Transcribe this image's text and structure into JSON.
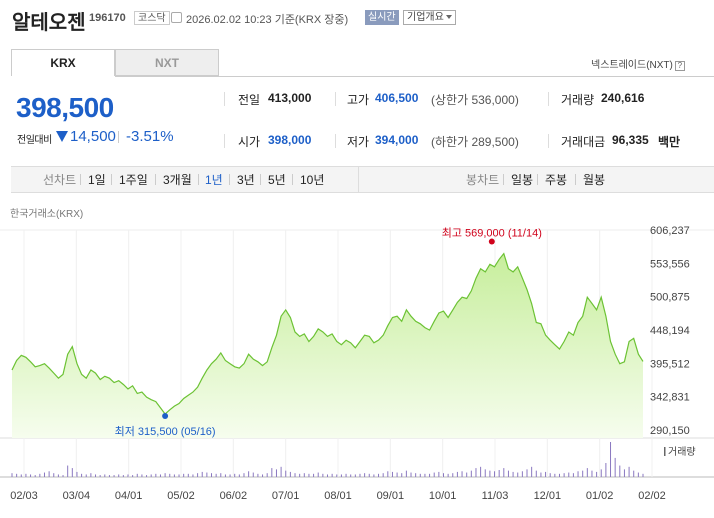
{
  "header": {
    "name": "알테오젠",
    "code": "196170",
    "market": "코스닥",
    "datetime": "2026.02.02 10:23 기준(KRX 장중)",
    "realtime": "실시간",
    "corp_button": "기업개요"
  },
  "tabs": {
    "krx": "KRX",
    "nxt": "NXT",
    "nxt_link": "넥스트레이드(NXT)",
    "help": "?"
  },
  "price": {
    "current": "398,500",
    "diff_label": "전일대비",
    "diff": "14,500",
    "pct": "-3.51%"
  },
  "stats": {
    "prev_label": "전일",
    "prev": "413,000",
    "high_label": "고가",
    "high": "406,500",
    "upper_note": "(상한가 536,000)",
    "vol_label": "거래량",
    "vol": "240,616",
    "open_label": "시가",
    "open": "398,000",
    "low_label": "저가",
    "low": "394,000",
    "lower_note": "(하한가 289,500)",
    "amount_label": "거래대금",
    "amount": "96,335",
    "amount_unit": "백만"
  },
  "periods": {
    "line_label": "선차트",
    "items": [
      "1일",
      "1주일",
      "3개월",
      "1년",
      "3년",
      "5년",
      "10년"
    ],
    "selected": "1년",
    "candle_label": "봉차트",
    "candle_items": [
      "일봉",
      "주봉",
      "월봉"
    ]
  },
  "chart_source": "한국거래소(KRX)",
  "colors": {
    "accent": "#1d5fc8",
    "line": "#6cc234",
    "high": "#d0021b",
    "low": "#1d5fc8",
    "volume": "#8a78c0"
  },
  "chart_data": {
    "type": "area",
    "y_ticks": [
      "606,237",
      "553,556",
      "500,875",
      "448,194",
      "395,512",
      "342,831",
      "290,150"
    ],
    "ylim": [
      290150,
      606237
    ],
    "x_labels": [
      "02/03",
      "03/04",
      "04/01",
      "05/02",
      "06/02",
      "07/01",
      "08/01",
      "09/01",
      "10/01",
      "11/03",
      "12/01",
      "01/02",
      "02/02"
    ],
    "max_label": "최고 569,000 (11/14)",
    "min_label": "최저 315,500 (05/16)",
    "volume_label": "거래량",
    "values": [
      385000,
      400000,
      408000,
      405000,
      398000,
      390000,
      392000,
      395000,
      388000,
      380000,
      372000,
      378000,
      410000,
      422000,
      395000,
      378000,
      372000,
      385000,
      380000,
      370000,
      375000,
      372000,
      365000,
      368000,
      362000,
      355000,
      360000,
      348000,
      350000,
      342000,
      338000,
      335000,
      325000,
      315500,
      322000,
      328000,
      332000,
      340000,
      345000,
      350000,
      358000,
      372000,
      385000,
      395000,
      402000,
      412000,
      400000,
      395000,
      390000,
      388000,
      395000,
      410000,
      402000,
      398000,
      392000,
      398000,
      420000,
      440000,
      470000,
      480000,
      468000,
      445000,
      438000,
      442000,
      430000,
      438000,
      450000,
      445000,
      438000,
      442000,
      430000,
      425000,
      432000,
      428000,
      420000,
      430000,
      440000,
      438000,
      428000,
      432000,
      440000,
      455000,
      468000,
      470000,
      462000,
      480000,
      470000,
      462000,
      458000,
      452000,
      448000,
      462000,
      475000,
      478000,
      468000,
      480000,
      492000,
      500000,
      498000,
      510000,
      530000,
      545000,
      540000,
      552000,
      548000,
      560000,
      569000,
      545000,
      540000,
      548000,
      530000,
      512000,
      490000,
      460000,
      458000,
      440000,
      432000,
      425000,
      418000,
      430000,
      445000,
      440000,
      460000,
      470000,
      500000,
      490000,
      480000,
      500000,
      470000,
      430000,
      410000,
      395000,
      398000,
      430000,
      435000,
      410000,
      398500
    ],
    "volume": [
      6,
      5,
      4,
      5,
      4,
      3,
      5,
      7,
      9,
      6,
      4,
      3,
      18,
      14,
      8,
      5,
      4,
      6,
      4,
      3,
      4,
      3,
      3,
      4,
      3,
      4,
      3,
      5,
      4,
      3,
      4,
      5,
      4,
      6,
      5,
      4,
      4,
      5,
      5,
      4,
      6,
      8,
      7,
      6,
      5,
      6,
      4,
      4,
      5,
      4,
      6,
      9,
      7,
      5,
      4,
      6,
      14,
      12,
      16,
      10,
      8,
      6,
      5,
      6,
      5,
      5,
      7,
      5,
      4,
      5,
      4,
      4,
      5,
      4,
      4,
      5,
      6,
      5,
      4,
      5,
      6,
      9,
      8,
      7,
      6,
      10,
      7,
      6,
      5,
      5,
      5,
      7,
      8,
      6,
      5,
      6,
      8,
      9,
      7,
      10,
      14,
      16,
      12,
      10,
      9,
      11,
      14,
      10,
      8,
      7,
      9,
      12,
      16,
      10,
      7,
      8,
      6,
      5,
      5,
      6,
      7,
      6,
      9,
      10,
      14,
      10,
      8,
      12,
      22,
      55,
      30,
      18,
      12,
      16,
      10,
      7,
      5
    ]
  }
}
